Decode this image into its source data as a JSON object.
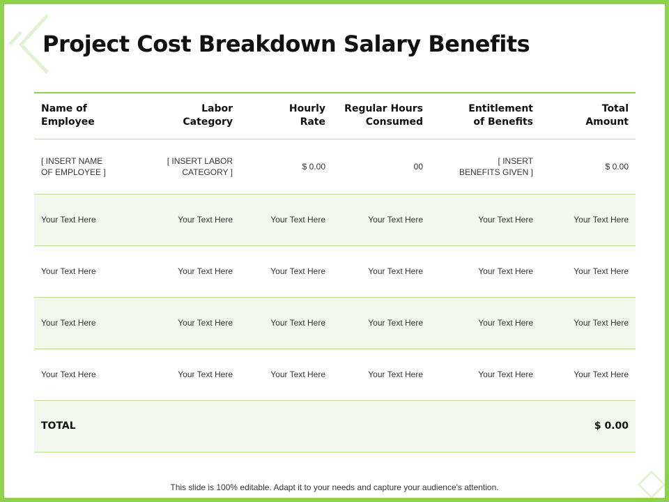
{
  "title": "Project Cost Breakdown Salary Benefits",
  "columns": [
    {
      "lines": [
        "Name of",
        "Employee"
      ],
      "align": "l"
    },
    {
      "lines": [
        "Labor",
        "Category"
      ],
      "align": "r"
    },
    {
      "lines": [
        "Hourly",
        "Rate"
      ],
      "align": "r"
    },
    {
      "lines": [
        "Regular Hours",
        "Consumed"
      ],
      "align": "r"
    },
    {
      "lines": [
        "Entitlement",
        "of Benefits"
      ],
      "align": "r"
    },
    {
      "lines": [
        "Total",
        "Amount"
      ],
      "align": "r"
    }
  ],
  "insert_row": [
    [
      "[ INSERT  NAME",
      "OF EMPLOYEE ]"
    ],
    [
      "[ INSERT  LABOR",
      "CATEGORY  ]"
    ],
    [
      "$ 0.00"
    ],
    [
      "00"
    ],
    [
      "[ INSERT",
      "BENEFITS  GIVEN  ]"
    ],
    [
      "$ 0.00"
    ]
  ],
  "text_rows": [
    [
      "Your Text Here",
      "Your Text Here",
      "Your Text Here",
      "Your Text Here",
      "Your Text Here",
      "Your Text Here"
    ],
    [
      "Your Text Here",
      "Your Text Here",
      "Your Text Here",
      "Your Text Here",
      "Your Text Here",
      "Your Text Here"
    ],
    [
      "Your Text Here",
      "Your Text Here",
      "Your Text Here",
      "Your Text Here",
      "Your Text Here",
      "Your Text Here"
    ],
    [
      "Your Text Here",
      "Your Text Here",
      "Your Text Here",
      "Your Text Here",
      "Your Text Here",
      "Your Text Here"
    ]
  ],
  "total": {
    "label": "TOTAL",
    "amount": "$ 0.00"
  },
  "footer": "This slide is 100% editable. Adapt it to your needs and capture your audience's attention.",
  "colors": {
    "accent": "#8fd14f",
    "row_tint": "#f3f8ec",
    "rule": "#b9dd94"
  }
}
